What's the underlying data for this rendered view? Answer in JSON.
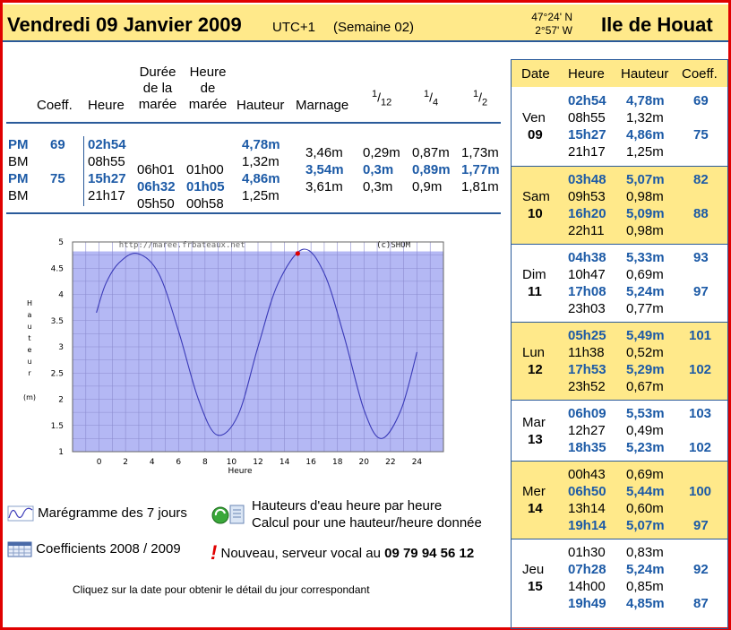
{
  "header": {
    "date": "Vendredi 09 Janvier 2009",
    "utc": "UTC+1",
    "week": "(Semaine 02)",
    "lat": "47°24' N",
    "lon": "2°57' W",
    "place": "Ile de Houat"
  },
  "table": {
    "headers": {
      "coeff": "Coeff.",
      "heure": "Heure",
      "duree": "Durée\nde la\nmarée",
      "heure_maree": "Heure\nde\nmarée",
      "hauteur": "Hauteur",
      "marnage": "Marnage",
      "f12": "12",
      "f4": "4",
      "f2": "2"
    },
    "rows": [
      {
        "type": "PM",
        "coeff": "69",
        "heure": "02h54",
        "duree": "",
        "heure_maree": "",
        "hauteur": "4,78m"
      },
      {
        "type": "BM",
        "coeff": "",
        "heure": "08h55",
        "duree": "06h01",
        "heure_maree": "01h00",
        "hauteur": "1,32m"
      },
      {
        "type": "PM",
        "coeff": "75",
        "heure": "15h27",
        "duree": "06h32",
        "heure_maree": "01h05",
        "hauteur": "4,86m"
      },
      {
        "type": "BM",
        "coeff": "",
        "heure": "21h17",
        "duree": "05h50",
        "heure_maree": "00h58",
        "hauteur": "1,25m"
      }
    ],
    "marnage": [
      {
        "marnage": "3,46m",
        "f12": "0,29m",
        "f4": "0,87m",
        "f2": "1,73m"
      },
      {
        "marnage": "3,54m",
        "f12": "0,3m",
        "f4": "0,89m",
        "f2": "1,77m"
      },
      {
        "marnage": "3,61m",
        "f12": "0,3m",
        "f4": "0,9m",
        "f2": "1,81m"
      }
    ]
  },
  "chart_data": {
    "type": "line",
    "xlabel": "Heure",
    "ylabel": "Hauteur (m)",
    "ylabel_letters": [
      "H",
      "a",
      "u",
      "t",
      "e",
      "u",
      "r"
    ],
    "ylabel_unit": "(m)",
    "xlim": [
      -2,
      26
    ],
    "ylim": [
      1,
      5
    ],
    "xticks": [
      "0",
      "2",
      "4",
      "6",
      "8",
      "10",
      "12",
      "14",
      "16",
      "18",
      "20",
      "22",
      "24"
    ],
    "yticks": [
      "1",
      "1.5",
      "2",
      "2.5",
      "3",
      "3.5",
      "4",
      "4.5",
      "5"
    ],
    "watermark_left": "http://maree.frbateaux.net",
    "watermark_right": "(c)SHOM",
    "current_marker": {
      "x": 15,
      "y": 4.78
    },
    "series": [
      {
        "x": [
          -0.2,
          0.5,
          1.5,
          2.9,
          4.5,
          6.0,
          7.5,
          8.9,
          10.5,
          12.0,
          13.5,
          15.4,
          17.0,
          18.5,
          20.0,
          21.3,
          22.8,
          24.0
        ],
        "y": [
          3.65,
          4.2,
          4.6,
          4.78,
          4.4,
          3.3,
          2.0,
          1.32,
          1.7,
          3.0,
          4.2,
          4.86,
          4.4,
          3.2,
          1.8,
          1.25,
          1.8,
          2.9
        ]
      }
    ],
    "colors": {
      "fill": "#b4b8f4",
      "line": "#3a3ab8",
      "grid": "#8c8cd0",
      "marker": "#e00000"
    }
  },
  "links": {
    "maregramme": "Marégramme des 7 jours",
    "hauteurs": "Hauteurs d'eau heure par heure",
    "calcul": "Calcul pour une hauteur/heure donnée",
    "coefficients": "Coefficients 2008 / 2009",
    "nouveau": "Nouveau, serveur vocal au ",
    "phone": "09 79 94 56 12",
    "footer": "Cliquez sur la date pour obtenir le détail du jour correspondant"
  },
  "panel": {
    "headers": {
      "date": "Date",
      "heure": "Heure",
      "hauteur": "Hauteur",
      "coeff": "Coeff."
    },
    "days": [
      {
        "day": "Ven",
        "num": "09",
        "tides": [
          {
            "heure": "02h54",
            "hauteur": "4,78m",
            "coeff": "69",
            "pm": true
          },
          {
            "heure": "08h55",
            "hauteur": "1,32m",
            "coeff": "",
            "pm": false
          },
          {
            "heure": "15h27",
            "hauteur": "4,86m",
            "coeff": "75",
            "pm": true
          },
          {
            "heure": "21h17",
            "hauteur": "1,25m",
            "coeff": "",
            "pm": false
          }
        ]
      },
      {
        "day": "Sam",
        "num": "10",
        "tides": [
          {
            "heure": "03h48",
            "hauteur": "5,07m",
            "coeff": "82",
            "pm": true
          },
          {
            "heure": "09h53",
            "hauteur": "0,98m",
            "coeff": "",
            "pm": false
          },
          {
            "heure": "16h20",
            "hauteur": "5,09m",
            "coeff": "88",
            "pm": true
          },
          {
            "heure": "22h11",
            "hauteur": "0,98m",
            "coeff": "",
            "pm": false
          }
        ]
      },
      {
        "day": "Dim",
        "num": "11",
        "tides": [
          {
            "heure": "04h38",
            "hauteur": "5,33m",
            "coeff": "93",
            "pm": true
          },
          {
            "heure": "10h47",
            "hauteur": "0,69m",
            "coeff": "",
            "pm": false
          },
          {
            "heure": "17h08",
            "hauteur": "5,24m",
            "coeff": "97",
            "pm": true
          },
          {
            "heure": "23h03",
            "hauteur": "0,77m",
            "coeff": "",
            "pm": false
          }
        ]
      },
      {
        "day": "Lun",
        "num": "12",
        "tides": [
          {
            "heure": "05h25",
            "hauteur": "5,49m",
            "coeff": "101",
            "pm": true
          },
          {
            "heure": "11h38",
            "hauteur": "0,52m",
            "coeff": "",
            "pm": false
          },
          {
            "heure": "17h53",
            "hauteur": "5,29m",
            "coeff": "102",
            "pm": true
          },
          {
            "heure": "23h52",
            "hauteur": "0,67m",
            "coeff": "",
            "pm": false
          }
        ]
      },
      {
        "day": "Mar",
        "num": "13",
        "tides": [
          {
            "heure": "06h09",
            "hauteur": "5,53m",
            "coeff": "103",
            "pm": true
          },
          {
            "heure": "12h27",
            "hauteur": "0,49m",
            "coeff": "",
            "pm": false
          },
          {
            "heure": "18h35",
            "hauteur": "5,23m",
            "coeff": "102",
            "pm": true
          }
        ]
      },
      {
        "day": "Mer",
        "num": "14",
        "tides": [
          {
            "heure": "00h43",
            "hauteur": "0,69m",
            "coeff": "",
            "pm": false
          },
          {
            "heure": "06h50",
            "hauteur": "5,44m",
            "coeff": "100",
            "pm": true
          },
          {
            "heure": "13h14",
            "hauteur": "0,60m",
            "coeff": "",
            "pm": false
          },
          {
            "heure": "19h14",
            "hauteur": "5,07m",
            "coeff": "97",
            "pm": true
          }
        ]
      },
      {
        "day": "Jeu",
        "num": "15",
        "tides": [
          {
            "heure": "01h30",
            "hauteur": "0,83m",
            "coeff": "",
            "pm": false
          },
          {
            "heure": "07h28",
            "hauteur": "5,24m",
            "coeff": "92",
            "pm": true
          },
          {
            "heure": "14h00",
            "hauteur": "0,85m",
            "coeff": "",
            "pm": false
          },
          {
            "heure": "19h49",
            "hauteur": "4,85m",
            "coeff": "87",
            "pm": true
          }
        ]
      }
    ],
    "colors": {
      "yellow": "#ffe98a",
      "white": "#ffffff"
    }
  }
}
